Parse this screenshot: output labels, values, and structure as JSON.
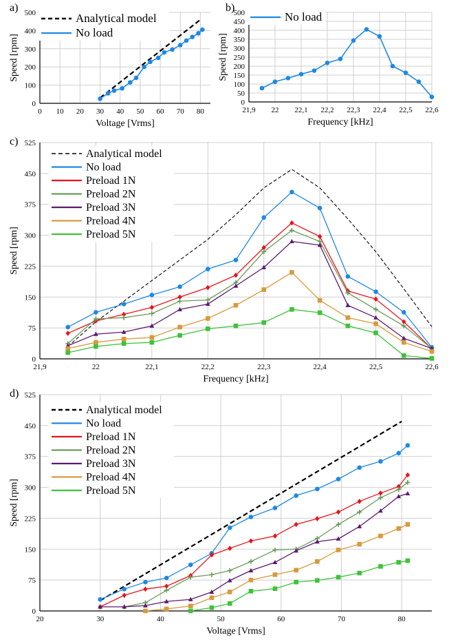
{
  "colors": {
    "analytical": "#000000",
    "no_load": "#1e88e5",
    "preload_1n": "#e8131b",
    "preload_2n": "#6a9b5a",
    "preload_3n": "#5c1a6e",
    "preload_4n": "#d79a3c",
    "preload_5n": "#3ec23a",
    "grid": "#cfcfcf"
  },
  "chart_data": [
    {
      "panel_label": "a)",
      "type": "line",
      "xlabel": "Voltage [Vrms]",
      "ylabel": "Speed [rpm]",
      "xlim": [
        0,
        85
      ],
      "ylim": [
        0,
        500
      ],
      "xticks": [
        "0",
        "10",
        "20",
        "30",
        "40",
        "50",
        "60",
        "70",
        "80"
      ],
      "yticks": [
        "0",
        "100",
        "200",
        "300",
        "400",
        "500"
      ],
      "grid": true,
      "legend_position": "top-left",
      "series": [
        {
          "name": "Analytical model",
          "style": "dashed",
          "color_key": "analytical",
          "x": [
            30,
            80
          ],
          "y": [
            30,
            460
          ]
        },
        {
          "name": "No load",
          "style": "solid",
          "color_key": "no_load",
          "marker": "circle",
          "x": [
            30,
            34,
            37,
            41,
            45,
            48,
            52,
            55,
            59,
            62,
            66,
            70,
            73,
            76,
            79,
            81
          ],
          "y": [
            25,
            55,
            70,
            82,
            115,
            140,
            200,
            228,
            250,
            280,
            296,
            320,
            345,
            365,
            385,
            405
          ]
        }
      ]
    },
    {
      "panel_label": "b)",
      "type": "line",
      "xlabel": "Frequency [kHz]",
      "ylabel": "Speed [rpm]",
      "xlim": [
        21.9,
        22.6
      ],
      "ylim": [
        0,
        500
      ],
      "xticks": [
        "21,9",
        "22",
        "22,1",
        "22,2",
        "22,3",
        "22,4",
        "22,5",
        "22,6"
      ],
      "yticks": [
        "0",
        "50",
        "100",
        "150",
        "200",
        "250",
        "300",
        "350",
        "400",
        "450",
        "500"
      ],
      "grid": true,
      "legend_position": "top-left",
      "series": [
        {
          "name": "No load",
          "style": "solid",
          "color_key": "no_load",
          "marker": "circle",
          "x": [
            21.95,
            22.0,
            22.05,
            22.1,
            22.15,
            22.2,
            22.25,
            22.3,
            22.35,
            22.4,
            22.45,
            22.5,
            22.55,
            22.6
          ],
          "y": [
            77,
            113,
            133,
            155,
            175,
            218,
            240,
            343,
            405,
            366,
            200,
            163,
            113,
            28
          ]
        }
      ]
    },
    {
      "panel_label": "c)",
      "type": "line",
      "xlabel": "Frequency [kHz]",
      "ylabel": "Speed [rpm]",
      "xlim": [
        21.9,
        22.6
      ],
      "ylim": [
        0,
        525
      ],
      "xticks": [
        "21,9",
        "22",
        "22,1",
        "22,2",
        "22,3",
        "22,4",
        "22,5",
        "22,6"
      ],
      "yticks": [
        "0",
        "75",
        "150",
        "225",
        "300",
        "375",
        "450",
        "525"
      ],
      "grid": true,
      "legend_position": "top-left",
      "series": [
        {
          "name": "Analytical model",
          "style": "dashed-thin",
          "color_key": "analytical",
          "x": [
            21.95,
            22.0,
            22.05,
            22.1,
            22.15,
            22.2,
            22.25,
            22.3,
            22.35,
            22.4,
            22.45,
            22.5,
            22.55,
            22.6
          ],
          "y": [
            30,
            90,
            140,
            190,
            240,
            290,
            350,
            415,
            460,
            415,
            340,
            260,
            170,
            78
          ]
        },
        {
          "name": "No load",
          "style": "solid",
          "color_key": "no_load",
          "marker": "circle",
          "x": [
            21.95,
            22.0,
            22.05,
            22.1,
            22.15,
            22.2,
            22.25,
            22.3,
            22.35,
            22.4,
            22.45,
            22.5,
            22.55,
            22.6
          ],
          "y": [
            77,
            113,
            133,
            155,
            175,
            218,
            240,
            343,
            405,
            366,
            200,
            163,
            113,
            28
          ]
        },
        {
          "name": "Preload 1N",
          "style": "solid",
          "color_key": "preload_1n",
          "marker": "diamond",
          "x": [
            21.95,
            22.0,
            22.05,
            22.1,
            22.15,
            22.2,
            22.25,
            22.3,
            22.35,
            22.4,
            22.45,
            22.5,
            22.55,
            22.6
          ],
          "y": [
            62,
            92,
            108,
            125,
            150,
            173,
            203,
            270,
            330,
            297,
            165,
            145,
            90,
            25
          ]
        },
        {
          "name": "Preload 2N",
          "style": "solid",
          "color_key": "preload_2n",
          "marker": "plus",
          "x": [
            21.95,
            22.0,
            22.05,
            22.1,
            22.15,
            22.2,
            22.25,
            22.3,
            22.35,
            22.4,
            22.45,
            22.5,
            22.55,
            22.6
          ],
          "y": [
            37,
            97,
            100,
            110,
            140,
            143,
            185,
            260,
            312,
            285,
            160,
            120,
            80,
            25
          ]
        },
        {
          "name": "Preload 3N",
          "style": "solid",
          "color_key": "preload_3n",
          "marker": "triangle",
          "x": [
            21.95,
            22.0,
            22.05,
            22.1,
            22.15,
            22.2,
            22.25,
            22.3,
            22.35,
            22.4,
            22.45,
            22.5,
            22.55,
            22.6
          ],
          "y": [
            32,
            60,
            65,
            80,
            120,
            133,
            177,
            222,
            285,
            276,
            130,
            100,
            50,
            25
          ]
        },
        {
          "name": "Preload 4N",
          "style": "solid",
          "color_key": "preload_4n",
          "marker": "square",
          "x": [
            21.95,
            22.0,
            22.05,
            22.1,
            22.15,
            22.2,
            22.25,
            22.3,
            22.35,
            22.4,
            22.45,
            22.5,
            22.55,
            22.6
          ],
          "y": [
            25,
            40,
            48,
            52,
            77,
            98,
            130,
            168,
            210,
            142,
            100,
            85,
            40,
            18
          ]
        },
        {
          "name": "Preload 5N",
          "style": "solid",
          "color_key": "preload_5n",
          "marker": "square",
          "x": [
            21.95,
            22.0,
            22.05,
            22.1,
            22.15,
            22.2,
            22.25,
            22.3,
            22.35,
            22.4,
            22.45,
            22.5,
            22.55,
            22.6
          ],
          "y": [
            15,
            30,
            37,
            40,
            57,
            73,
            80,
            88,
            120,
            112,
            80,
            63,
            8,
            1
          ]
        }
      ]
    },
    {
      "panel_label": "d)",
      "type": "line",
      "xlabel": "Voltage [Vrms]",
      "ylabel": "Speed [rpm]",
      "xlim": [
        20,
        85
      ],
      "ylim": [
        0,
        525
      ],
      "xticks": [
        "20",
        "30",
        "40",
        "50",
        "60",
        "70",
        "80"
      ],
      "yticks": [
        "0",
        "75",
        "150",
        "225",
        "300",
        "375",
        "450",
        "525"
      ],
      "grid": true,
      "legend_position": "top-left",
      "series": [
        {
          "name": "Analytical model",
          "style": "dashed",
          "color_key": "analytical",
          "x": [
            30,
            80
          ],
          "y": [
            25,
            460
          ]
        },
        {
          "name": "No load",
          "style": "solid",
          "color_key": "no_load",
          "marker": "circle",
          "x": [
            30,
            34,
            37.5,
            41,
            45,
            48.5,
            51.5,
            55,
            59,
            62.5,
            66,
            69.5,
            73,
            76.5,
            79.5,
            81
          ],
          "y": [
            28,
            53,
            70,
            80,
            112,
            140,
            202,
            228,
            250,
            280,
            296,
            320,
            348,
            363,
            383,
            402
          ]
        },
        {
          "name": "Preload 1N",
          "style": "solid",
          "color_key": "preload_1n",
          "marker": "diamond",
          "x": [
            30,
            34,
            37.5,
            41,
            45,
            48.5,
            51.5,
            55,
            59,
            62.5,
            66,
            69.5,
            73,
            76.5,
            79.5,
            81
          ],
          "y": [
            10,
            38,
            53,
            60,
            86,
            136,
            152,
            170,
            182,
            210,
            224,
            240,
            266,
            286,
            302,
            330
          ]
        },
        {
          "name": "Preload 2N",
          "style": "solid",
          "color_key": "preload_2n",
          "marker": "plus",
          "x": [
            34,
            37.5,
            41,
            45,
            48.5,
            51.5,
            55,
            59,
            62.5,
            66,
            69.5,
            73,
            76.5,
            79.5,
            81
          ],
          "y": [
            10,
            20,
            50,
            82,
            88,
            98,
            120,
            148,
            150,
            176,
            210,
            240,
            275,
            295,
            312
          ]
        },
        {
          "name": "Preload 3N",
          "style": "solid",
          "color_key": "preload_3n",
          "marker": "triangle",
          "x": [
            30,
            34,
            37.5,
            41,
            45,
            48.5,
            51.5,
            55,
            59,
            62.5,
            66,
            69.5,
            73,
            76.5,
            79.5,
            81
          ],
          "y": [
            10,
            10,
            13,
            23,
            28,
            46,
            74,
            98,
            118,
            146,
            168,
            175,
            205,
            243,
            278,
            285
          ]
        },
        {
          "name": "Preload 4N",
          "style": "solid",
          "color_key": "preload_4n",
          "marker": "square",
          "x": [
            37.5,
            41,
            45,
            48.5,
            51.5,
            55,
            59,
            62.5,
            66,
            69.5,
            73,
            76.5,
            79.5,
            81
          ],
          "y": [
            0,
            5,
            12,
            32,
            46,
            75,
            88,
            99,
            120,
            148,
            162,
            182,
            200,
            210
          ]
        },
        {
          "name": "Preload 5N",
          "style": "solid",
          "color_key": "preload_5n",
          "marker": "square",
          "x": [
            45,
            48.5,
            51.5,
            55,
            59,
            62.5,
            66,
            69.5,
            73,
            76.5,
            79.5,
            81
          ],
          "y": [
            0,
            8,
            18,
            48,
            54,
            70,
            74,
            82,
            92,
            108,
            118,
            122
          ]
        }
      ]
    }
  ]
}
